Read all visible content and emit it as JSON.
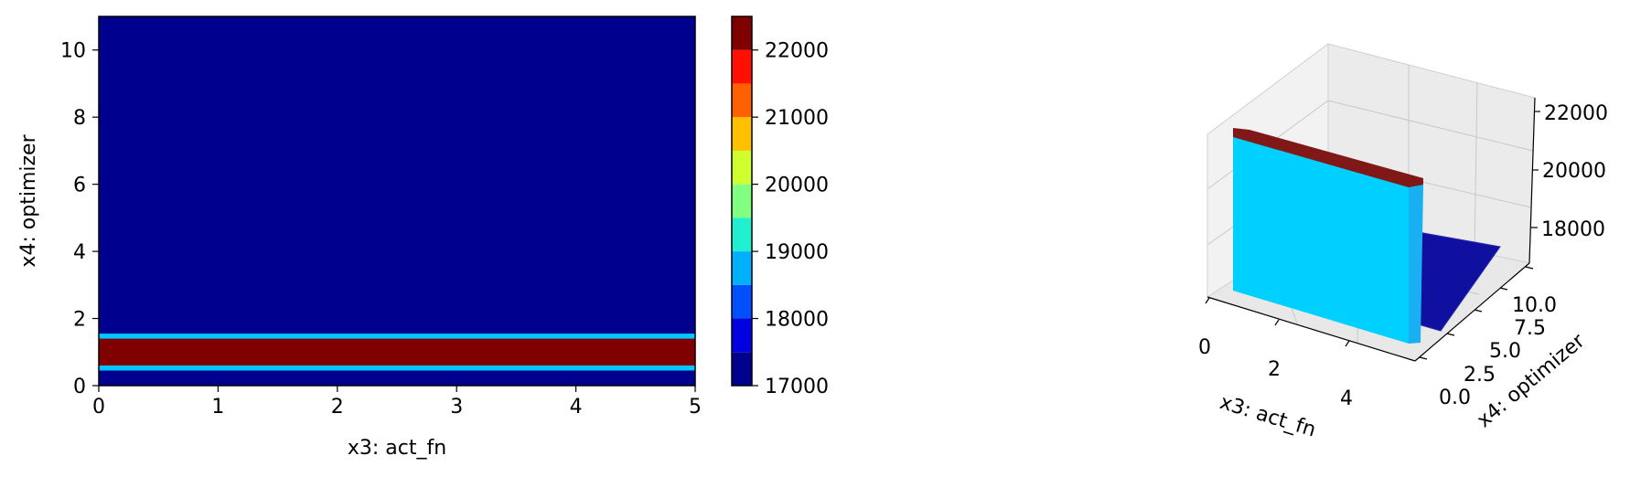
{
  "chart_data": [
    {
      "type": "heatmap",
      "subtype": "filled-contour",
      "xlabel": "x3: act_fn",
      "ylabel": "x4: optimizer",
      "xlim": [
        0,
        5
      ],
      "ylim": [
        0,
        11
      ],
      "xticks": [
        0,
        1,
        2,
        3,
        4,
        5
      ],
      "yticks": [
        0,
        2,
        4,
        6,
        8,
        10
      ],
      "colormap": "jet",
      "background_value": 17000,
      "bands": [
        {
          "y_from": 0.45,
          "y_to": 0.6,
          "color": "#00c8ff"
        },
        {
          "y_from": 0.6,
          "y_to": 1.4,
          "color": "#800000"
        },
        {
          "y_from": 1.4,
          "y_to": 1.55,
          "color": "#00c8ff"
        }
      ],
      "colorbar": {
        "ticks": [
          17000,
          18000,
          19000,
          20000,
          21000,
          22000
        ],
        "levels": [
          17000,
          17500,
          18000,
          18500,
          19000,
          19500,
          20000,
          20500,
          21000,
          21500,
          22000,
          22500
        ],
        "colors": [
          "#00008f",
          "#0000e0",
          "#0050ff",
          "#00b0ff",
          "#20f0d0",
          "#80ff80",
          "#d0ff30",
          "#ffc000",
          "#ff6000",
          "#ff1000",
          "#800000"
        ]
      }
    },
    {
      "type": "surface3d",
      "xlabel": "x3: act_fn",
      "ylabel": "x4: optimizer",
      "xticks": [
        0,
        2,
        4
      ],
      "yticks": [
        "0.0",
        "2.5",
        "5.0",
        "7.5",
        "10.0"
      ],
      "zticks": [
        18000,
        20000,
        22000
      ],
      "colors": {
        "wall": "#00d0ff",
        "top": "#800000",
        "floor": "#1010a0"
      }
    }
  ]
}
